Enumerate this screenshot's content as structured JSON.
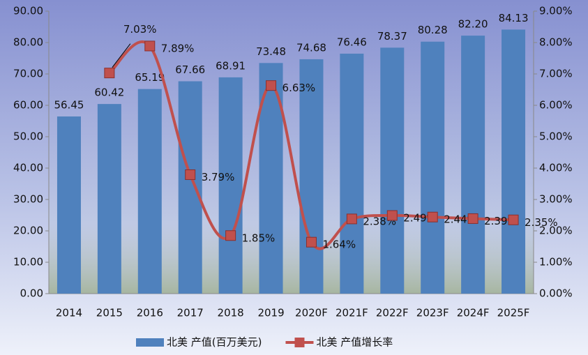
{
  "chart_data": {
    "type": "bar_line",
    "categories": [
      "2014",
      "2015",
      "2016",
      "2017",
      "2018",
      "2019",
      "2020F",
      "2021F",
      "2022F",
      "2023F",
      "2024F",
      "2025F"
    ],
    "series": [
      {
        "name": "北美 产值(百万美元)",
        "type": "bar",
        "color": "#4f81bd",
        "values": [
          56.45,
          60.42,
          65.19,
          67.66,
          68.91,
          73.48,
          74.68,
          76.46,
          78.37,
          80.28,
          82.2,
          84.13
        ],
        "value_labels": [
          "56.45",
          "60.42",
          "65.19",
          "67.66",
          "68.91",
          "73.48",
          "74.68",
          "76.46",
          "78.37",
          "80.28",
          "82.20",
          "84.13"
        ]
      },
      {
        "name": "北美 产值增长率",
        "type": "line",
        "axis": "y2",
        "color": "#c0504d",
        "values": [
          null,
          7.03,
          7.89,
          3.79,
          1.85,
          6.63,
          1.64,
          2.38,
          2.49,
          2.44,
          2.39,
          2.35
        ],
        "value_labels": [
          null,
          "7.03%",
          "7.89%",
          "3.79%",
          "1.85%",
          "6.63%",
          "1.64%",
          "2.38%",
          "2.49%",
          "2.44%",
          "2.39%",
          "2.35%"
        ]
      }
    ],
    "ylim": [
      0,
      90
    ],
    "yticks": [
      {
        "value": 0,
        "label": "0.00"
      },
      {
        "value": 10,
        "label": "10.00"
      },
      {
        "value": 20,
        "label": "20.00"
      },
      {
        "value": 30,
        "label": "30.00"
      },
      {
        "value": 40,
        "label": "40.00"
      },
      {
        "value": 50,
        "label": "50.00"
      },
      {
        "value": 60,
        "label": "60.00"
      },
      {
        "value": 70,
        "label": "70.00"
      },
      {
        "value": 80,
        "label": "80.00"
      },
      {
        "value": 90,
        "label": "90.00"
      }
    ],
    "y2lim": [
      0,
      9
    ],
    "y2ticks": [
      {
        "value": 0,
        "label": "0.00%"
      },
      {
        "value": 1,
        "label": "1.00%"
      },
      {
        "value": 2,
        "label": "2.00%"
      },
      {
        "value": 3,
        "label": "3.00%"
      },
      {
        "value": 4,
        "label": "4.00%"
      },
      {
        "value": 5,
        "label": "5.00%"
      },
      {
        "value": 6,
        "label": "6.00%"
      },
      {
        "value": 7,
        "label": "7.00%"
      },
      {
        "value": 8,
        "label": "8.00%"
      },
      {
        "value": 9,
        "label": "9.00%"
      }
    ],
    "legend": "bottom"
  }
}
